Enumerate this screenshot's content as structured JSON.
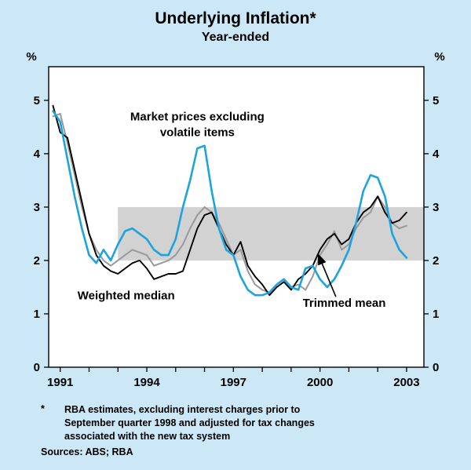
{
  "title": "Underlying Inflation*",
  "subtitle": "Year-ended",
  "colors": {
    "page_bg": "#cce7f5",
    "plot_bg": "#ffffff",
    "band": "#d2d2d2",
    "axis": "#000000",
    "market_blue": "#1da4dc",
    "weighted_black": "#000000",
    "trimmed_grey": "#97999b"
  },
  "footnote": {
    "marker": "*",
    "lines": [
      "RBA estimates, excluding interest charges prior to",
      "September quarter 1998 and adjusted for tax changes",
      "associated with the new tax system"
    ],
    "sources": "Sources: ABS; RBA"
  },
  "chart_data": {
    "type": "line",
    "title": "Underlying Inflation*",
    "subtitle": "Year-ended",
    "ylabel": "%",
    "ylim": [
      0,
      5.63
    ],
    "xlim": [
      1990.6,
      2003.6
    ],
    "yticks": [
      0,
      1,
      2,
      3,
      4,
      5
    ],
    "xticks": [
      1991,
      1992,
      1993,
      1994,
      1995,
      1996,
      1997,
      1998,
      1999,
      2000,
      2001,
      2002,
      2003
    ],
    "xtick_labels": [
      1991,
      1994,
      1997,
      2000,
      2003
    ],
    "grid": false,
    "legend": "annotated-labels",
    "target_band": {
      "ymin": 2,
      "ymax": 3,
      "x_start": 1993
    },
    "x": [
      1990.75,
      1991,
      1991.25,
      1991.5,
      1991.75,
      1992,
      1992.25,
      1992.5,
      1992.75,
      1993,
      1993.25,
      1993.5,
      1993.75,
      1994,
      1994.25,
      1994.5,
      1994.75,
      1995,
      1995.25,
      1995.5,
      1995.75,
      1996,
      1996.25,
      1996.5,
      1996.75,
      1997,
      1997.25,
      1997.5,
      1997.75,
      1998,
      1998.25,
      1998.5,
      1998.75,
      1999,
      1999.25,
      1999.5,
      1999.75,
      2000,
      2000.25,
      2000.5,
      2000.75,
      2001,
      2001.25,
      2001.5,
      2001.75,
      2002,
      2002.25,
      2002.5,
      2002.75,
      2003
    ],
    "series": [
      {
        "name": "Market prices excluding volatile items",
        "color": "#1da4dc",
        "values": [
          4.8,
          4.6,
          3.9,
          3.2,
          2.6,
          2.1,
          1.95,
          2.2,
          2.0,
          2.3,
          2.55,
          2.6,
          2.5,
          2.4,
          2.2,
          2.1,
          2.1,
          2.4,
          3.0,
          3.5,
          4.1,
          4.15,
          3.3,
          2.6,
          2.2,
          2.1,
          1.7,
          1.45,
          1.35,
          1.35,
          1.4,
          1.55,
          1.65,
          1.5,
          1.45,
          1.85,
          1.9,
          1.65,
          1.5,
          1.65,
          1.9,
          2.2,
          2.7,
          3.3,
          3.6,
          3.55,
          3.2,
          2.5,
          2.2,
          2.05
        ]
      },
      {
        "name": "Weighted median",
        "color": "#000000",
        "values": [
          4.9,
          4.4,
          4.3,
          3.7,
          3.1,
          2.5,
          2.1,
          1.9,
          1.8,
          1.75,
          1.85,
          1.95,
          2.0,
          1.85,
          1.65,
          1.7,
          1.75,
          1.75,
          1.8,
          2.2,
          2.6,
          2.85,
          2.9,
          2.6,
          2.3,
          2.1,
          2.35,
          1.9,
          1.7,
          1.55,
          1.35,
          1.5,
          1.6,
          1.45,
          1.65,
          1.75,
          1.9,
          2.2,
          2.4,
          2.5,
          2.3,
          2.4,
          2.7,
          2.9,
          3.0,
          3.2,
          2.9,
          2.7,
          2.75,
          2.9
        ]
      },
      {
        "name": "Trimmed mean",
        "color": "#97999b",
        "values": [
          4.7,
          4.75,
          4.2,
          3.6,
          3.0,
          2.5,
          2.2,
          2.0,
          1.9,
          2.0,
          2.1,
          2.2,
          2.15,
          2.1,
          1.9,
          1.95,
          2.0,
          2.1,
          2.3,
          2.6,
          2.85,
          3.0,
          2.9,
          2.7,
          2.4,
          2.1,
          2.2,
          1.8,
          1.55,
          1.45,
          1.4,
          1.55,
          1.65,
          1.5,
          1.55,
          1.45,
          1.7,
          2.1,
          2.3,
          2.55,
          2.2,
          2.3,
          2.6,
          2.8,
          2.9,
          3.2,
          3.0,
          2.7,
          2.6,
          2.65
        ]
      }
    ],
    "annotations": [
      {
        "lines": [
          "Market prices excluding",
          "volatile items"
        ],
        "x": 1995.75,
        "y": 4.62,
        "anchor": "middle"
      },
      {
        "lines": [
          "Weighted median"
        ],
        "x": 1991.6,
        "y": 1.27,
        "anchor": "start"
      },
      {
        "lines": [
          "Trimmed mean"
        ],
        "x": 1999.4,
        "y": 1.13,
        "anchor": "start",
        "arrow": {
          "from": [
            2000.55,
            1.32
          ],
          "to": [
            1999.95,
            2.1
          ]
        }
      }
    ]
  }
}
